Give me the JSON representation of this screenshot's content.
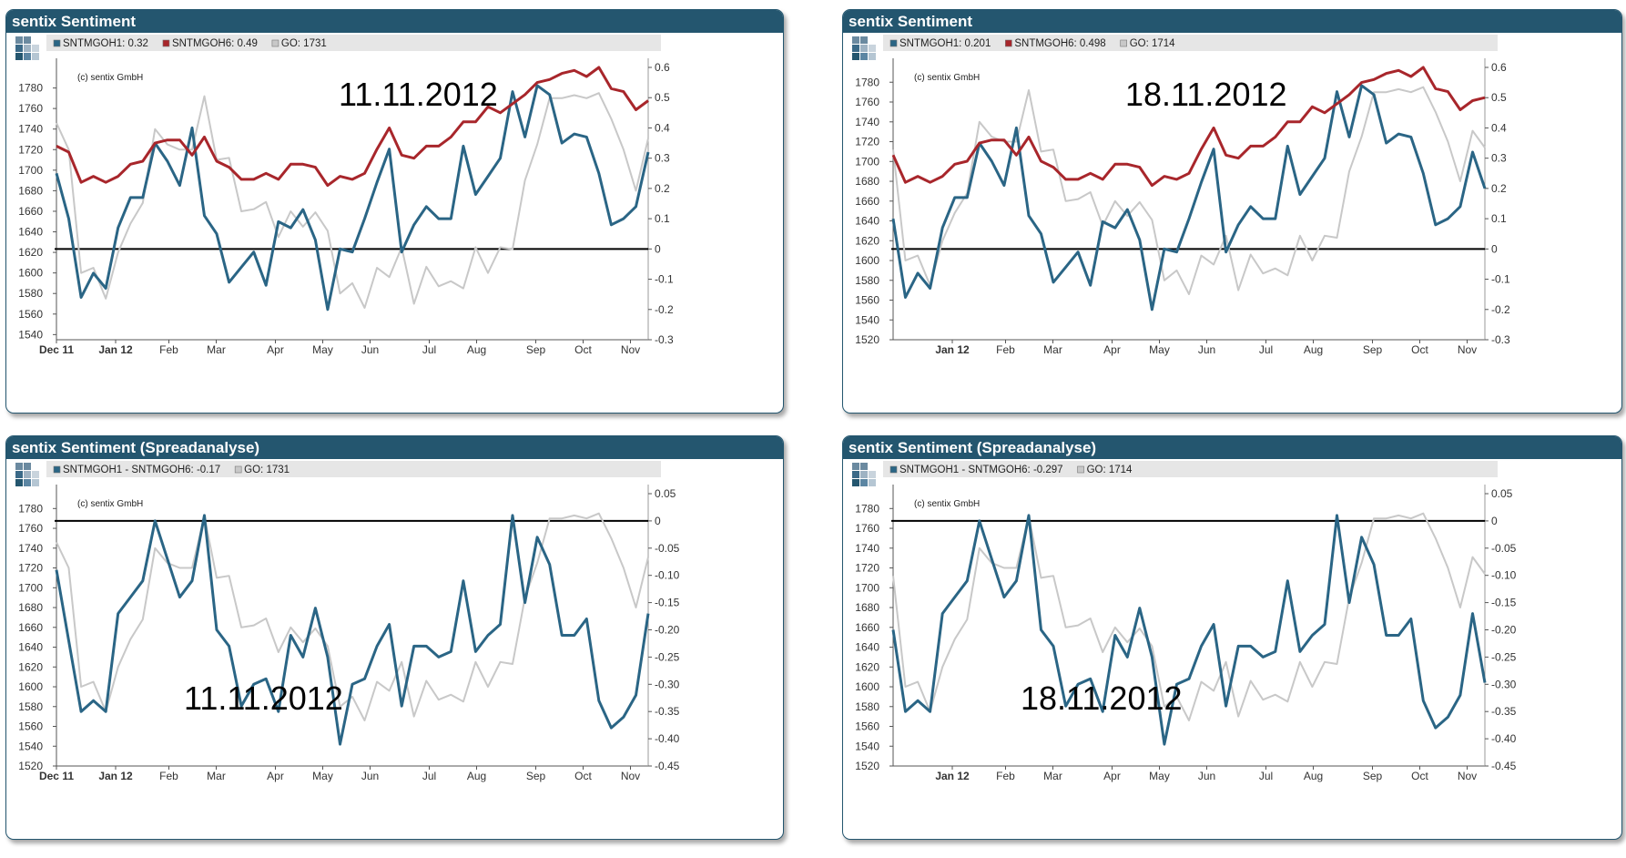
{
  "colors": {
    "blue": "#2a6585",
    "red": "#a8262b",
    "grey": "#c8c8c8",
    "header": "#24566f",
    "zero": "#000000"
  },
  "chart_data": [
    {
      "type": "line",
      "title": "sentix Sentiment",
      "copyright": "(c) sentix GmbH",
      "date_label": "11.11.2012",
      "legend": [
        {
          "label": "SNTMGOH1: 0.32",
          "color": "#2a6585"
        },
        {
          "label": "SNTMGOH6: 0.49",
          "color": "#a8262b"
        },
        {
          "label": "GO: 1731",
          "color": "#c8c8c8"
        }
      ],
      "x_tick_labels": [
        "Dec 11",
        "Jan 12",
        "Feb",
        "Mar",
        "Apr",
        "May",
        "Jun",
        "Jul",
        "Aug",
        "Sep",
        "Oct",
        "Nov"
      ],
      "left_ticks": [
        "1780",
        "1760",
        "1740",
        "1720",
        "1700",
        "1680",
        "1660",
        "1640",
        "1620",
        "1600",
        "1580",
        "1560",
        "1540"
      ],
      "right_ticks": [
        "0.6",
        "0.5",
        "0.4",
        "0.3",
        "0.2",
        "0.1",
        "0",
        "-0.1",
        "-0.2",
        "-0.3"
      ],
      "y_left_lim": [
        1535,
        1800
      ],
      "y_right_lim": [
        -0.3,
        0.6
      ],
      "zero_line": 0,
      "series": [
        {
          "name": "SNTMGOH1",
          "axis": "right",
          "color": "#2a6585",
          "values": [
            0.25,
            0.1,
            -0.16,
            -0.08,
            -0.13,
            0.07,
            0.17,
            0.17,
            0.35,
            0.29,
            0.21,
            0.4,
            0.11,
            0.05,
            -0.11,
            -0.06,
            -0.01,
            -0.12,
            0.09,
            0.07,
            0.13,
            0.03,
            -0.2,
            0,
            -0.01,
            0.1,
            0.22,
            0.33,
            -0.01,
            0.08,
            0.14,
            0.1,
            0.1,
            0.34,
            0.18,
            0.24,
            0.3,
            0.52,
            0.37,
            0.54,
            0.51,
            0.35,
            0.38,
            0.37,
            0.25,
            0.08,
            0.1,
            0.14,
            0.32
          ]
        },
        {
          "name": "SNTMGOH6",
          "axis": "right",
          "color": "#a8262b",
          "values": [
            0.34,
            0.32,
            0.22,
            0.24,
            0.22,
            0.24,
            0.28,
            0.29,
            0.35,
            0.36,
            0.36,
            0.31,
            0.37,
            0.29,
            0.27,
            0.23,
            0.23,
            0.25,
            0.23,
            0.28,
            0.28,
            0.27,
            0.21,
            0.24,
            0.23,
            0.25,
            0.33,
            0.4,
            0.31,
            0.3,
            0.34,
            0.34,
            0.37,
            0.42,
            0.42,
            0.47,
            0.45,
            0.48,
            0.51,
            0.55,
            0.56,
            0.58,
            0.59,
            0.57,
            0.6,
            0.53,
            0.52,
            0.46,
            0.49
          ]
        },
        {
          "name": "GO",
          "axis": "left",
          "color": "#c8c8c8",
          "values": [
            1746,
            1720,
            1600,
            1605,
            1575,
            1620,
            1648,
            1668,
            1740,
            1725,
            1720,
            1720,
            1772,
            1710,
            1712,
            1660,
            1662,
            1669,
            1635,
            1660,
            1645,
            1659,
            1641,
            1580,
            1590,
            1566,
            1605,
            1596,
            1625,
            1570,
            1606,
            1587,
            1592,
            1585,
            1625,
            1600,
            1625,
            1623,
            1690,
            1725,
            1770,
            1770,
            1773,
            1770,
            1775,
            1750,
            1720,
            1680,
            1731
          ]
        }
      ]
    },
    {
      "type": "line",
      "title": "sentix Sentiment",
      "copyright": "(c) sentix GmbH",
      "date_label": "18.11.2012",
      "legend": [
        {
          "label": "SNTMGOH1: 0.201",
          "color": "#2a6585"
        },
        {
          "label": "SNTMGOH6: 0.498",
          "color": "#a8262b"
        },
        {
          "label": "GO: 1714",
          "color": "#c8c8c8"
        }
      ],
      "x_tick_labels": [
        "Jan 12",
        "Feb",
        "Mar",
        "Apr",
        "May",
        "Jun",
        "Jul",
        "Aug",
        "Sep",
        "Oct",
        "Nov"
      ],
      "left_ticks": [
        "1780",
        "1760",
        "1740",
        "1720",
        "1700",
        "1680",
        "1660",
        "1640",
        "1620",
        "1600",
        "1580",
        "1560",
        "1540",
        "1520"
      ],
      "right_ticks": [
        "0.6",
        "0.5",
        "0.4",
        "0.3",
        "0.2",
        "0.1",
        "0",
        "-0.1",
        "-0.2",
        "-0.3"
      ],
      "y_left_lim": [
        1520,
        1795
      ],
      "y_right_lim": [
        -0.3,
        0.6
      ],
      "zero_line": 0,
      "series": [
        {
          "name": "SNTMGOH1",
          "axis": "right",
          "color": "#2a6585",
          "values": [
            0.1,
            -0.16,
            -0.08,
            -0.13,
            0.07,
            0.17,
            0.17,
            0.35,
            0.29,
            0.21,
            0.4,
            0.11,
            0.05,
            -0.11,
            -0.06,
            -0.01,
            -0.12,
            0.09,
            0.07,
            0.13,
            0.03,
            -0.2,
            0,
            -0.01,
            0.1,
            0.22,
            0.33,
            -0.01,
            0.08,
            0.14,
            0.1,
            0.1,
            0.34,
            0.18,
            0.24,
            0.3,
            0.52,
            0.37,
            0.54,
            0.51,
            0.35,
            0.38,
            0.37,
            0.25,
            0.08,
            0.1,
            0.14,
            0.32,
            0.2
          ]
        },
        {
          "name": "SNTMGOH6",
          "axis": "right",
          "color": "#a8262b",
          "values": [
            0.31,
            0.22,
            0.24,
            0.22,
            0.24,
            0.28,
            0.29,
            0.35,
            0.36,
            0.36,
            0.31,
            0.37,
            0.29,
            0.27,
            0.23,
            0.23,
            0.25,
            0.23,
            0.28,
            0.28,
            0.27,
            0.21,
            0.24,
            0.23,
            0.25,
            0.33,
            0.4,
            0.31,
            0.3,
            0.34,
            0.34,
            0.37,
            0.42,
            0.42,
            0.47,
            0.45,
            0.48,
            0.51,
            0.55,
            0.56,
            0.58,
            0.59,
            0.57,
            0.6,
            0.53,
            0.52,
            0.46,
            0.49,
            0.5
          ]
        },
        {
          "name": "GO",
          "axis": "left",
          "color": "#c8c8c8",
          "values": [
            1712,
            1600,
            1605,
            1575,
            1620,
            1648,
            1668,
            1740,
            1725,
            1720,
            1720,
            1772,
            1710,
            1712,
            1660,
            1662,
            1669,
            1635,
            1660,
            1645,
            1659,
            1641,
            1580,
            1590,
            1566,
            1605,
            1596,
            1625,
            1570,
            1606,
            1587,
            1592,
            1585,
            1625,
            1600,
            1625,
            1623,
            1690,
            1725,
            1770,
            1770,
            1773,
            1770,
            1775,
            1750,
            1720,
            1680,
            1731,
            1714
          ]
        }
      ]
    },
    {
      "type": "line",
      "title": "sentix Sentiment (Spreadanalyse)",
      "copyright": "(c) sentix GmbH",
      "date_label": "11.11.2012",
      "legend": [
        {
          "label": "SNTMGOH1 - SNTMGOH6: -0.17",
          "color": "#2a6585"
        },
        {
          "label": "GO: 1731",
          "color": "#c8c8c8"
        }
      ],
      "x_tick_labels": [
        "Dec 11",
        "Jan 12",
        "Feb",
        "Mar",
        "Apr",
        "May",
        "Jun",
        "Jul",
        "Aug",
        "Sep",
        "Oct",
        "Nov"
      ],
      "left_ticks": [
        "1780",
        "1760",
        "1740",
        "1720",
        "1700",
        "1680",
        "1660",
        "1640",
        "1620",
        "1600",
        "1580",
        "1560",
        "1540",
        "1520"
      ],
      "right_ticks": [
        "0.05",
        "0",
        "-0.05",
        "-0.10",
        "-0.15",
        "-0.20",
        "-0.25",
        "-0.30",
        "-0.35",
        "-0.40",
        "-0.45"
      ],
      "y_left_lim": [
        1520,
        1795
      ],
      "y_right_lim": [
        -0.45,
        0.05
      ],
      "zero_line": 0,
      "series": [
        {
          "name": "SNTMGOH1 - SNTMGOH6",
          "axis": "right",
          "color": "#2a6585",
          "values": [
            -0.09,
            -0.22,
            -0.35,
            -0.33,
            -0.35,
            -0.17,
            -0.14,
            -0.11,
            0,
            -0.07,
            -0.14,
            -0.11,
            0.01,
            -0.2,
            -0.23,
            -0.34,
            -0.3,
            -0.29,
            -0.35,
            -0.21,
            -0.25,
            -0.16,
            -0.25,
            -0.41,
            -0.3,
            -0.29,
            -0.23,
            -0.19,
            -0.34,
            -0.23,
            -0.23,
            -0.25,
            -0.24,
            -0.11,
            -0.24,
            -0.21,
            -0.19,
            0.01,
            -0.15,
            -0.03,
            -0.08,
            -0.21,
            -0.21,
            -0.18,
            -0.33,
            -0.38,
            -0.36,
            -0.32,
            -0.17
          ]
        },
        {
          "name": "GO",
          "axis": "left",
          "color": "#c8c8c8",
          "values": [
            1746,
            1720,
            1600,
            1605,
            1575,
            1620,
            1648,
            1668,
            1740,
            1725,
            1720,
            1720,
            1772,
            1710,
            1712,
            1660,
            1662,
            1669,
            1635,
            1660,
            1645,
            1659,
            1641,
            1580,
            1590,
            1566,
            1605,
            1596,
            1625,
            1570,
            1606,
            1587,
            1592,
            1585,
            1625,
            1600,
            1625,
            1623,
            1690,
            1725,
            1770,
            1770,
            1773,
            1770,
            1775,
            1750,
            1720,
            1680,
            1731
          ]
        }
      ]
    },
    {
      "type": "line",
      "title": "sentix Sentiment (Spreadanalyse)",
      "copyright": "(c) sentix GmbH",
      "date_label": "18.11.2012",
      "legend": [
        {
          "label": "SNTMGOH1 - SNTMGOH6: -0.297",
          "color": "#2a6585"
        },
        {
          "label": "GO: 1714",
          "color": "#c8c8c8"
        }
      ],
      "x_tick_labels": [
        "Jan 12",
        "Feb",
        "Mar",
        "Apr",
        "May",
        "Jun",
        "Jul",
        "Aug",
        "Sep",
        "Oct",
        "Nov"
      ],
      "left_ticks": [
        "1780",
        "1760",
        "1740",
        "1720",
        "1700",
        "1680",
        "1660",
        "1640",
        "1620",
        "1600",
        "1580",
        "1560",
        "1540",
        "1520"
      ],
      "right_ticks": [
        "0.05",
        "0",
        "-0.05",
        "-0.10",
        "-0.15",
        "-0.20",
        "-0.25",
        "-0.30",
        "-0.35",
        "-0.40",
        "-0.45"
      ],
      "y_left_lim": [
        1520,
        1795
      ],
      "y_right_lim": [
        -0.45,
        0.05
      ],
      "zero_line": 0,
      "series": [
        {
          "name": "SNTMGOH1 - SNTMGOH6",
          "axis": "right",
          "color": "#2a6585",
          "values": [
            -0.2,
            -0.35,
            -0.33,
            -0.35,
            -0.17,
            -0.14,
            -0.11,
            0,
            -0.07,
            -0.14,
            -0.11,
            0.01,
            -0.2,
            -0.23,
            -0.34,
            -0.3,
            -0.29,
            -0.35,
            -0.21,
            -0.25,
            -0.16,
            -0.25,
            -0.41,
            -0.3,
            -0.29,
            -0.23,
            -0.19,
            -0.34,
            -0.23,
            -0.23,
            -0.25,
            -0.24,
            -0.11,
            -0.24,
            -0.21,
            -0.19,
            0.01,
            -0.15,
            -0.03,
            -0.08,
            -0.21,
            -0.21,
            -0.18,
            -0.33,
            -0.38,
            -0.36,
            -0.32,
            -0.17,
            -0.297
          ]
        },
        {
          "name": "GO",
          "axis": "left",
          "color": "#c8c8c8",
          "values": [
            1712,
            1600,
            1605,
            1575,
            1620,
            1648,
            1668,
            1740,
            1725,
            1720,
            1720,
            1772,
            1710,
            1712,
            1660,
            1662,
            1669,
            1635,
            1660,
            1645,
            1659,
            1641,
            1580,
            1590,
            1566,
            1605,
            1596,
            1625,
            1570,
            1606,
            1587,
            1592,
            1585,
            1625,
            1600,
            1625,
            1623,
            1690,
            1725,
            1770,
            1770,
            1773,
            1770,
            1775,
            1750,
            1720,
            1680,
            1731,
            1714
          ]
        }
      ]
    }
  ]
}
